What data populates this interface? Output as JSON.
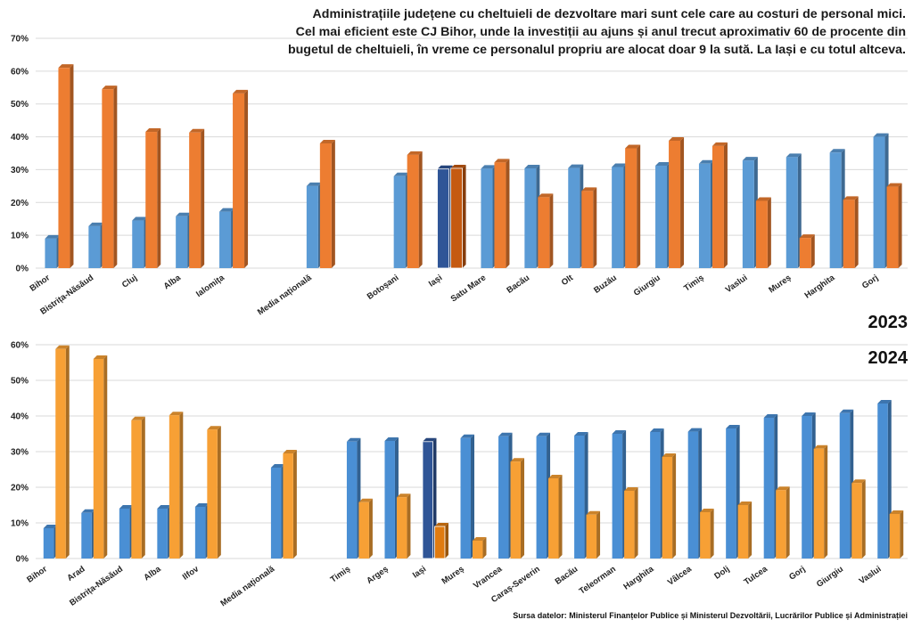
{
  "title_lines": [
    "Administrațiile județene cu cheltuieli de dezvoltare mari sunt cele care au costuri de personal mici.",
    "Cel mai eficient este CJ Bihor, unde la investiții au ajuns și anul trecut aproximativ 60 de procente din",
    "bugetul de cheltuieli, în vreme ce personalul propriu are alocat doar 9 la sută. La Iași e cu totul altceva."
  ],
  "source": "Sursa datelor: Ministerul Finanțelor Publice și Ministerul Dezvoltării, Lucrărilor Publice și Administrației",
  "colors": {
    "personal_2023": "#5b9bd5",
    "investitii_2023": "#ed7d31",
    "personal_2024": "#4a8fd4",
    "investitii_2024": "#f7a035",
    "highlight_personal": "#2f5597",
    "highlight_investitii_2023": "#c55a11",
    "highlight_investitii_2024": "#e07b10",
    "grid": "#d9d9d9"
  },
  "chart_data": [
    {
      "type": "bar",
      "year_label": "2023",
      "ylim": [
        0,
        70
      ],
      "yticks": [
        0,
        10,
        20,
        30,
        40,
        50,
        60,
        70
      ],
      "tick_suffix": "%",
      "grid": true,
      "highlight": "Iași",
      "categories": [
        "Bihor",
        "Bistrița-Năsăud",
        "Cluj",
        "Alba",
        "Ialomița",
        "",
        "Media națională",
        "",
        "Botoșani",
        "Iași",
        "Satu Mare",
        "Bacău",
        "Olt",
        "Buzău",
        "Giurgiu",
        "Timiș",
        "Vaslui",
        "Mureș",
        "Harghita",
        "Gorj"
      ],
      "series": [
        {
          "values": [
            9,
            12.8,
            14.5,
            15.8,
            17.2,
            null,
            25,
            null,
            28,
            30.2,
            30.3,
            30.4,
            30.5,
            30.8,
            31.2,
            31.8,
            32.8,
            33.8,
            35.2,
            40
          ]
        },
        {
          "values": [
            61,
            54.5,
            41.5,
            41.3,
            53.2,
            null,
            38,
            null,
            34.5,
            30.4,
            32.2,
            21.6,
            23.5,
            36.5,
            38.8,
            37.2,
            20.5,
            9.2,
            20.8,
            24.8
          ]
        }
      ]
    },
    {
      "type": "bar",
      "year_label": "2024",
      "ylim": [
        0,
        60
      ],
      "yticks": [
        0,
        10,
        20,
        30,
        40,
        50,
        60
      ],
      "tick_suffix": "%",
      "grid": true,
      "highlight": "Iași",
      "categories": [
        "Bihor",
        "Arad",
        "Bistrița-Năsăud",
        "Alba",
        "Ilfov",
        "",
        "Media națională",
        "",
        "Timiș",
        "Argeș",
        "Iași",
        "Mureș",
        "Vrancea",
        "Caraș-Severin",
        "Bacău",
        "Teleorman",
        "Harghita",
        "Vâlcea",
        "Dolj",
        "Tulcea",
        "Gorj",
        "Giurgiu",
        "Vaslui"
      ],
      "series": [
        {
          "values": [
            8.5,
            12.8,
            14,
            14,
            14.5,
            null,
            25.5,
            null,
            32.8,
            33,
            32.8,
            33.8,
            34.3,
            34.3,
            34.5,
            35,
            35.5,
            35.6,
            36.5,
            39.5,
            40,
            40.8,
            43.5
          ]
        },
        {
          "values": [
            58.8,
            56,
            38.8,
            40.2,
            36.2,
            null,
            29.5,
            null,
            15.8,
            17.2,
            9,
            5,
            27.2,
            22.5,
            12.3,
            19,
            28.5,
            13,
            15,
            19.2,
            30.8,
            21.2,
            12.5
          ]
        }
      ]
    }
  ]
}
